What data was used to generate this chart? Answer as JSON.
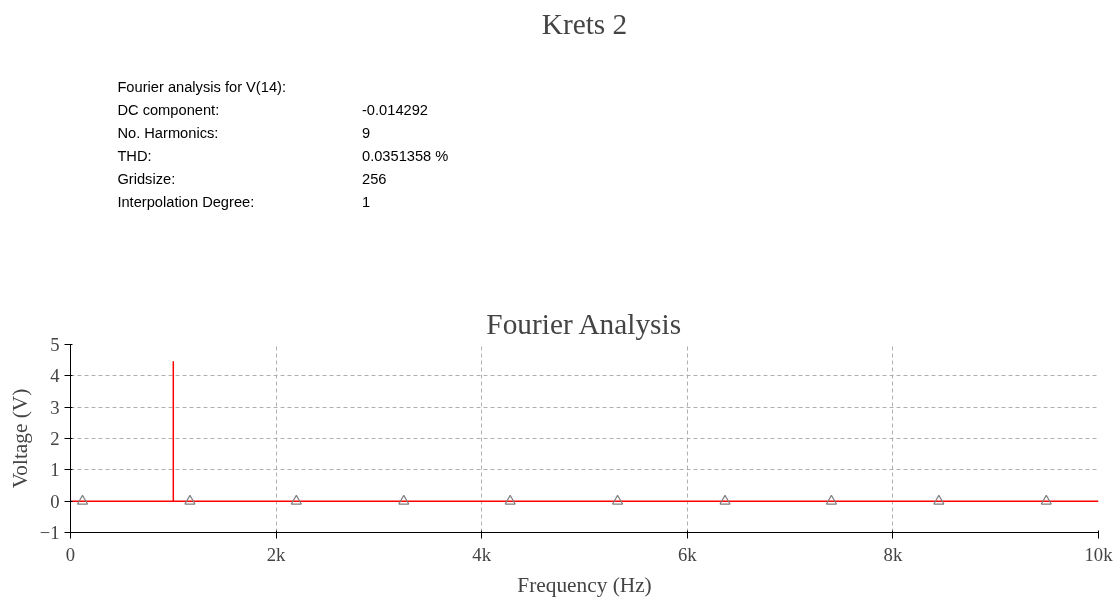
{
  "chart_data": [
    {
      "type": "other",
      "title": "Krets 2",
      "cell_labels": [
        [
          "Fourier analysis for V(14):",
          null
        ],
        [
          "DC component:",
          "-0.014292"
        ],
        [
          "No. Harmonics:",
          "9"
        ],
        [
          "THD:",
          "0.0351358 %"
        ],
        [
          "Gridsize:",
          "256"
        ],
        [
          "Interpolation Degree:",
          "1"
        ]
      ]
    },
    {
      "type": "line",
      "title": "Fourier Analysis",
      "xlabel": "Frequency (Hz)",
      "ylabel": "Voltage (V)",
      "xlim": [
        0,
        10000
      ],
      "ylim": [
        -1,
        5
      ],
      "xticks": [
        0,
        {
          "value": 2000,
          "label": "2k"
        },
        {
          "value": 4000,
          "label": "4k"
        },
        {
          "value": 6000,
          "label": "6k"
        },
        {
          "value": 8000,
          "label": "8k"
        },
        {
          "value": 10000,
          "label": "10k"
        }
      ],
      "yticks": [
        -1,
        0,
        1,
        2,
        3,
        4,
        5
      ],
      "grid": true,
      "series": [
        {
          "type": "line",
          "color": "#ff0000",
          "x": [
            0,
            1000,
            1000,
            1000,
            10000
          ],
          "values": [
            0,
            0,
            4.45,
            0,
            0
          ]
        },
        {
          "type": "scatter",
          "marker": "triangle",
          "color": "#808080",
          "x": [
            117,
            1162,
            2197,
            3242,
            4277,
            5322,
            6367,
            7402,
            8447,
            9492
          ],
          "values": [
            0,
            0,
            0,
            0,
            0,
            0,
            0,
            0,
            0,
            0
          ]
        }
      ]
    }
  ]
}
